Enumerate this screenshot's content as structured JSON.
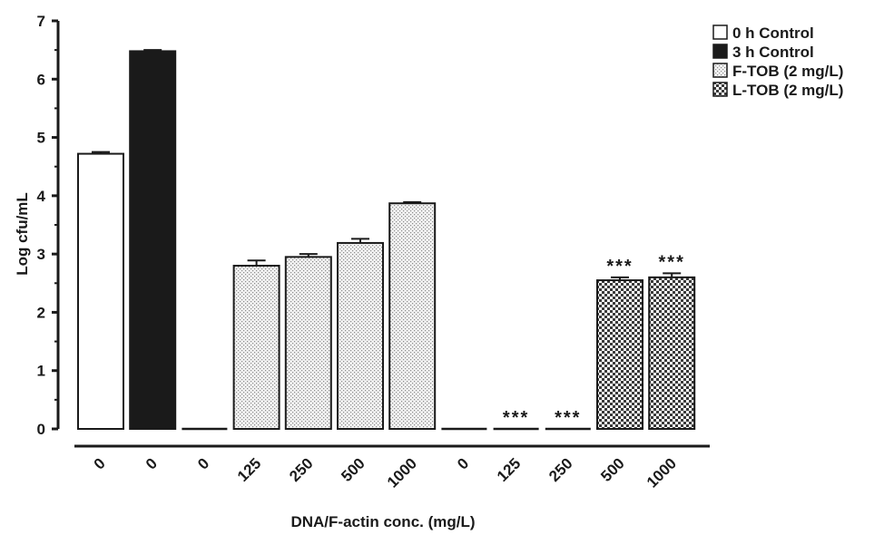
{
  "chart_data": {
    "type": "bar",
    "title": "",
    "xlabel": "DNA/F-actin conc. (mg/L)",
    "ylabel": "Log cfu/mL",
    "ylim": [
      0,
      7
    ],
    "yticks": [
      "0",
      "1",
      "2",
      "3",
      "4",
      "5",
      "6",
      "7"
    ],
    "legend": {
      "position": "top-right",
      "entries": [
        {
          "name": "0 h Control",
          "pattern": "white"
        },
        {
          "name": "3 h Control",
          "pattern": "black"
        },
        {
          "name": "F-TOB (2 mg/L)",
          "pattern": "dots"
        },
        {
          "name": "L-TOB (2 mg/L)",
          "pattern": "checker"
        }
      ]
    },
    "bars": [
      {
        "category": "0",
        "group": "0 h Control",
        "value": 4.72,
        "error": 0.03,
        "sig": ""
      },
      {
        "category": "0",
        "group": "3 h Control",
        "value": 6.48,
        "error": 0.02,
        "sig": ""
      },
      {
        "category": "0",
        "group": "F-TOB (2 mg/L)",
        "value": 0,
        "error": 0,
        "sig": ""
      },
      {
        "category": "125",
        "group": "F-TOB (2 mg/L)",
        "value": 2.8,
        "error": 0.09,
        "sig": ""
      },
      {
        "category": "250",
        "group": "F-TOB (2 mg/L)",
        "value": 2.95,
        "error": 0.05,
        "sig": ""
      },
      {
        "category": "500",
        "group": "F-TOB (2 mg/L)",
        "value": 3.19,
        "error": 0.07,
        "sig": ""
      },
      {
        "category": "1000",
        "group": "F-TOB (2 mg/L)",
        "value": 3.87,
        "error": 0.02,
        "sig": ""
      },
      {
        "category": "0",
        "group": "L-TOB (2 mg/L)",
        "value": 0,
        "error": 0,
        "sig": ""
      },
      {
        "category": "125",
        "group": "L-TOB (2 mg/L)",
        "value": 0,
        "error": 0,
        "sig": "***"
      },
      {
        "category": "250",
        "group": "L-TOB (2 mg/L)",
        "value": 0,
        "error": 0,
        "sig": "***"
      },
      {
        "category": "500",
        "group": "L-TOB (2 mg/L)",
        "value": 2.55,
        "error": 0.05,
        "sig": "***"
      },
      {
        "category": "1000",
        "group": "L-TOB (2 mg/L)",
        "value": 2.6,
        "error": 0.07,
        "sig": "***"
      }
    ]
  }
}
